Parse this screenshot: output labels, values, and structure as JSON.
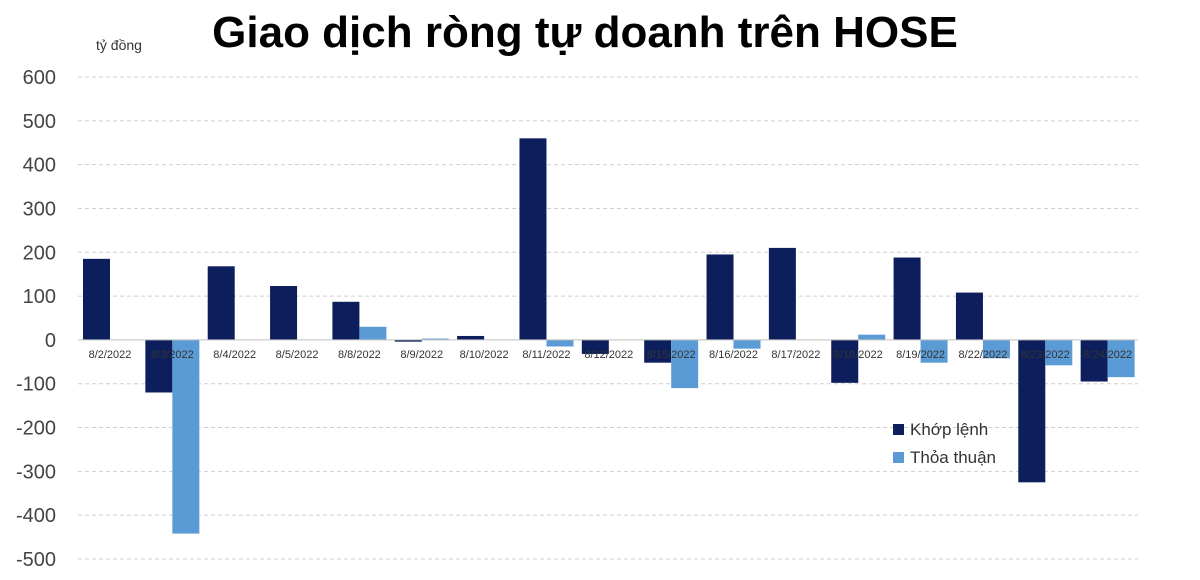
{
  "chart_data": {
    "type": "bar",
    "title": "Giao dịch ròng tự doanh trên HOSE",
    "ylabel": "tỷ đồng",
    "xlabel": "",
    "ylim": [
      -500,
      600
    ],
    "yticks": [
      600,
      500,
      400,
      300,
      200,
      100,
      0,
      -100,
      -200,
      -300,
      -400,
      -500
    ],
    "grid": true,
    "legend_position": "right",
    "categories": [
      "8/2/2022",
      "8/3/2022",
      "8/4/2022",
      "8/5/2022",
      "8/8/2022",
      "8/9/2022",
      "8/10/2022",
      "8/11/2022",
      "8/12/2022",
      "8/15/2022",
      "8/16/2022",
      "8/17/2022",
      "8/18/2022",
      "8/19/2022",
      "8/22/2022",
      "8/23/2022",
      "8/24/2022"
    ],
    "series": [
      {
        "name": "Khớp lệnh",
        "color": "#0c1f5c",
        "values": [
          185,
          -120,
          168,
          123,
          87,
          -4,
          9,
          460,
          -32,
          -52,
          195,
          210,
          -98,
          188,
          108,
          -325,
          -95
        ]
      },
      {
        "name": "Thỏa thuận",
        "color": "#5b9bd5",
        "values": [
          0,
          -442,
          0,
          0,
          30,
          3,
          0,
          -15,
          0,
          -110,
          -20,
          0,
          12,
          -52,
          -42,
          -58,
          -85
        ]
      }
    ]
  }
}
